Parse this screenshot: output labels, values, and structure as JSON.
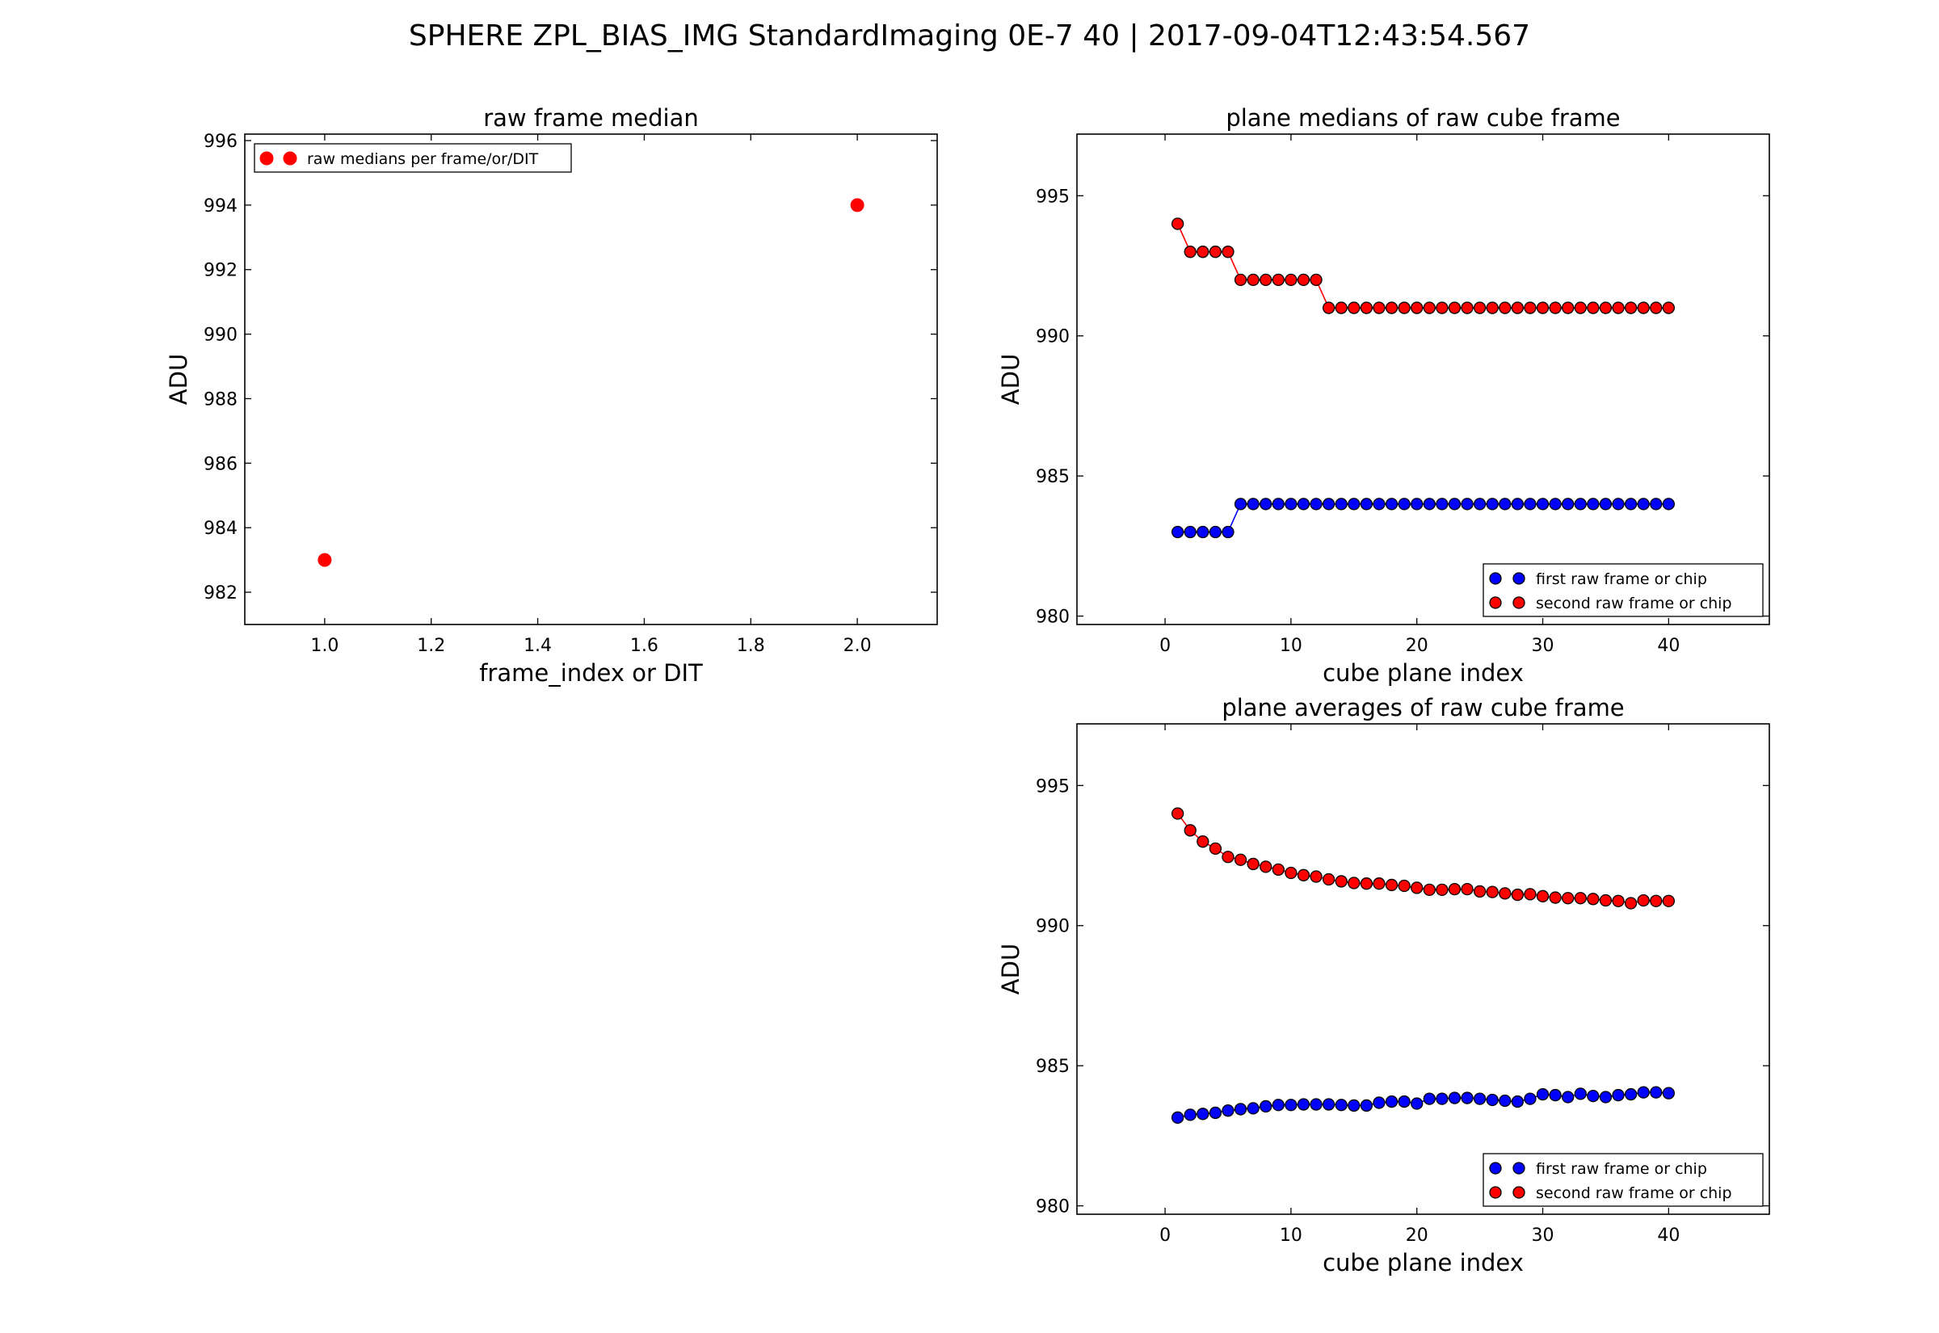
{
  "suptitle": "SPHERE ZPL_BIAS_IMG   StandardImaging  0E-7  40  |  2017-09-04T12:43:54.567",
  "colors": {
    "first": "#0000ff",
    "second": "#ff0000",
    "axes": "#000000"
  },
  "chart_data": [
    {
      "id": "raw-frame-median",
      "type": "scatter",
      "title": "raw frame median",
      "xlabel": "frame_index or DIT",
      "ylabel": "ADU",
      "xlim": [
        0.85,
        2.15
      ],
      "ylim": [
        981,
        996.2
      ],
      "xticks": [
        1.0,
        1.2,
        1.4,
        1.6,
        1.8,
        2.0
      ],
      "xtick_labels": [
        "1.0",
        "1.2",
        "1.4",
        "1.6",
        "1.8",
        "2.0"
      ],
      "yticks": [
        982,
        984,
        986,
        988,
        990,
        992,
        994,
        996
      ],
      "ytick_labels": [
        "982",
        "984",
        "986",
        "988",
        "990",
        "992",
        "994",
        "996"
      ],
      "legend": "top-left",
      "series": [
        {
          "name": "raw medians per frame/or/DIT",
          "color": "#ff0000",
          "marker": "dot-solid",
          "line": false,
          "x": [
            1.0,
            2.0
          ],
          "y": [
            983,
            994
          ]
        }
      ]
    },
    {
      "id": "plane-medians",
      "type": "line",
      "title": "plane medians of raw cube frame",
      "xlabel": "cube plane index",
      "ylabel": "ADU",
      "xlim": [
        -7,
        48
      ],
      "ylim": [
        979.7,
        997.2
      ],
      "xticks": [
        0,
        10,
        20,
        30,
        40
      ],
      "xtick_labels": [
        "0",
        "10",
        "20",
        "30",
        "40"
      ],
      "yticks": [
        980,
        985,
        990,
        995
      ],
      "ytick_labels": [
        "980",
        "985",
        "990",
        "995"
      ],
      "legend": "bottom-right",
      "series": [
        {
          "name": "first  raw frame or chip",
          "color": "#0000ff",
          "marker": "dot-outlined",
          "line": true,
          "x": [
            1,
            2,
            3,
            4,
            5,
            6,
            7,
            8,
            9,
            10,
            11,
            12,
            13,
            14,
            15,
            16,
            17,
            18,
            19,
            20,
            21,
            22,
            23,
            24,
            25,
            26,
            27,
            28,
            29,
            30,
            31,
            32,
            33,
            34,
            35,
            36,
            37,
            38,
            39,
            40
          ],
          "y": [
            983,
            983,
            983,
            983,
            983,
            984,
            984,
            984,
            984,
            984,
            984,
            984,
            984,
            984,
            984,
            984,
            984,
            984,
            984,
            984,
            984,
            984,
            984,
            984,
            984,
            984,
            984,
            984,
            984,
            984,
            984,
            984,
            984,
            984,
            984,
            984,
            984,
            984,
            984,
            984
          ]
        },
        {
          "name": "second raw frame or chip",
          "color": "#ff0000",
          "marker": "dot-outlined",
          "line": true,
          "x": [
            1,
            2,
            3,
            4,
            5,
            6,
            7,
            8,
            9,
            10,
            11,
            12,
            13,
            14,
            15,
            16,
            17,
            18,
            19,
            20,
            21,
            22,
            23,
            24,
            25,
            26,
            27,
            28,
            29,
            30,
            31,
            32,
            33,
            34,
            35,
            36,
            37,
            38,
            39,
            40
          ],
          "y": [
            994,
            993,
            993,
            993,
            993,
            992,
            992,
            992,
            992,
            992,
            992,
            992,
            991,
            991,
            991,
            991,
            991,
            991,
            991,
            991,
            991,
            991,
            991,
            991,
            991,
            991,
            991,
            991,
            991,
            991,
            991,
            991,
            991,
            991,
            991,
            991,
            991,
            991,
            991,
            991
          ]
        }
      ]
    },
    {
      "id": "plane-averages",
      "type": "line",
      "title": "plane averages of raw cube frame",
      "xlabel": "cube plane index",
      "ylabel": "ADU",
      "xlim": [
        -7,
        48
      ],
      "ylim": [
        979.7,
        997.2
      ],
      "xticks": [
        0,
        10,
        20,
        30,
        40
      ],
      "xtick_labels": [
        "0",
        "10",
        "20",
        "30",
        "40"
      ],
      "yticks": [
        980,
        985,
        990,
        995
      ],
      "ytick_labels": [
        "980",
        "985",
        "990",
        "995"
      ],
      "legend": "bottom-right",
      "series": [
        {
          "name": "first  raw frame or chip",
          "color": "#0000ff",
          "marker": "dot-outlined",
          "line": true,
          "x": [
            1,
            2,
            3,
            4,
            5,
            6,
            7,
            8,
            9,
            10,
            11,
            12,
            13,
            14,
            15,
            16,
            17,
            18,
            19,
            20,
            21,
            22,
            23,
            24,
            25,
            26,
            27,
            28,
            29,
            30,
            31,
            32,
            33,
            34,
            35,
            36,
            37,
            38,
            39,
            40
          ],
          "y": [
            983.15,
            983.25,
            983.28,
            983.32,
            983.4,
            983.45,
            983.48,
            983.55,
            983.6,
            983.6,
            983.62,
            983.62,
            983.62,
            983.6,
            983.58,
            983.58,
            983.68,
            983.72,
            983.72,
            983.65,
            983.82,
            983.82,
            983.85,
            983.85,
            983.82,
            983.78,
            983.75,
            983.72,
            983.82,
            983.98,
            983.95,
            983.88,
            984.0,
            983.92,
            983.88,
            983.95,
            983.98,
            984.05,
            984.05,
            984.02
          ]
        },
        {
          "name": "second raw frame or chip",
          "color": "#ff0000",
          "marker": "dot-outlined",
          "line": true,
          "x": [
            1,
            2,
            3,
            4,
            5,
            6,
            7,
            8,
            9,
            10,
            11,
            12,
            13,
            14,
            15,
            16,
            17,
            18,
            19,
            20,
            21,
            22,
            23,
            24,
            25,
            26,
            27,
            28,
            29,
            30,
            31,
            32,
            33,
            34,
            35,
            36,
            37,
            38,
            39,
            40
          ],
          "y": [
            994.0,
            993.4,
            993.0,
            992.75,
            992.45,
            992.35,
            992.2,
            992.1,
            992.0,
            991.88,
            991.8,
            991.75,
            991.65,
            991.58,
            991.52,
            991.5,
            991.5,
            991.45,
            991.42,
            991.35,
            991.28,
            991.28,
            991.3,
            991.3,
            991.22,
            991.2,
            991.15,
            991.1,
            991.12,
            991.05,
            991.0,
            990.98,
            990.98,
            990.95,
            990.9,
            990.88,
            990.8,
            990.9,
            990.88,
            990.88
          ]
        }
      ]
    }
  ]
}
